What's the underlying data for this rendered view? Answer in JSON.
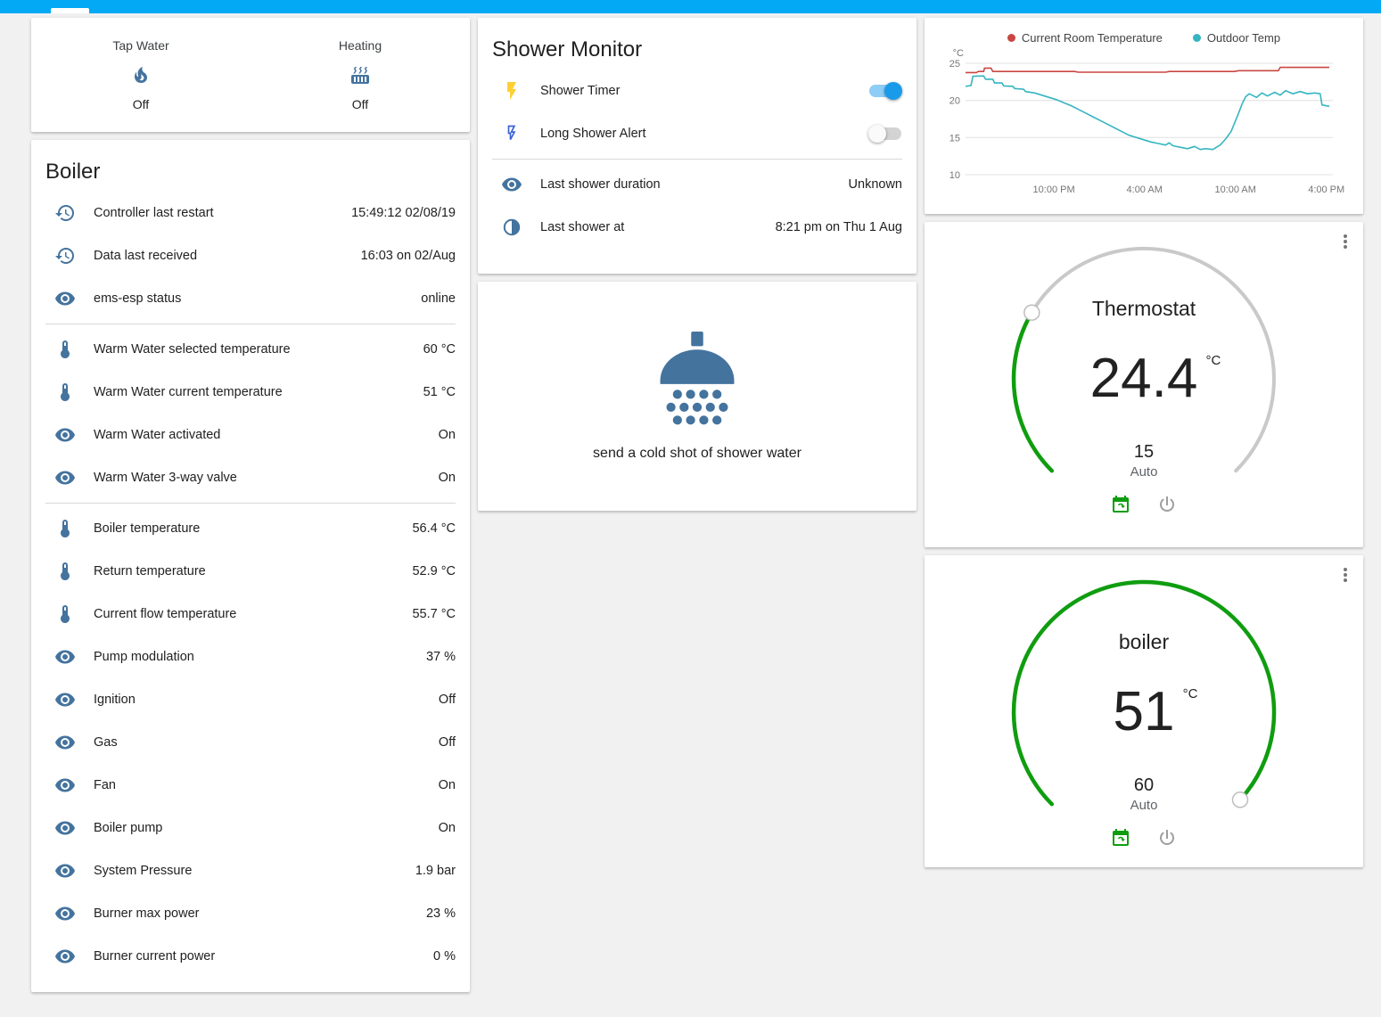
{
  "colors": {
    "accent": "#03a9f4",
    "icon_blue": "#44739e",
    "green": "#0f9d0f",
    "toggle_on": "#1a9bea",
    "toggle_track_on": "#8ecdf5",
    "flash_yellow": "#fdd033",
    "flash_blue": "#3b63d8",
    "series_red": "#c94742",
    "series_teal": "#35b5c1"
  },
  "glance_card": {
    "items": [
      {
        "label": "Tap Water",
        "icon": "fire",
        "state": "Off"
      },
      {
        "label": "Heating",
        "icon": "radiator",
        "state": "Off"
      }
    ]
  },
  "boiler_card": {
    "title": "Boiler",
    "rows": [
      {
        "icon": "history",
        "name": "Controller last restart",
        "value": "15:49:12 02/08/19"
      },
      {
        "icon": "history",
        "name": "Data last received",
        "value": "16:03 on 02/Aug"
      },
      {
        "icon": "eye",
        "name": "ems-esp status",
        "value": "online",
        "divider_after": true
      },
      {
        "icon": "thermometer",
        "name": "Warm Water selected temperature",
        "value": "60 °C"
      },
      {
        "icon": "thermometer",
        "name": "Warm Water current temperature",
        "value": "51 °C"
      },
      {
        "icon": "eye",
        "name": "Warm Water activated",
        "value": "On"
      },
      {
        "icon": "eye",
        "name": "Warm Water 3-way valve",
        "value": "On",
        "divider_after": true
      },
      {
        "icon": "thermometer",
        "name": "Boiler temperature",
        "value": "56.4 °C"
      },
      {
        "icon": "thermometer",
        "name": "Return temperature",
        "value": "52.9 °C"
      },
      {
        "icon": "thermometer",
        "name": "Current flow temperature",
        "value": "55.7 °C"
      },
      {
        "icon": "eye",
        "name": "Pump modulation",
        "value": "37 %"
      },
      {
        "icon": "eye",
        "name": "Ignition",
        "value": "Off"
      },
      {
        "icon": "eye",
        "name": "Gas",
        "value": "Off"
      },
      {
        "icon": "eye",
        "name": "Fan",
        "value": "On"
      },
      {
        "icon": "eye",
        "name": "Boiler pump",
        "value": "On"
      },
      {
        "icon": "eye",
        "name": "System Pressure",
        "value": "1.9 bar"
      },
      {
        "icon": "eye",
        "name": "Burner max power",
        "value": "23 %"
      },
      {
        "icon": "eye",
        "name": "Burner current power",
        "value": "0 %"
      }
    ]
  },
  "shower_card": {
    "title": "Shower Monitor",
    "rows": [
      {
        "name": "Shower Timer",
        "on": true
      },
      {
        "name": "Long Shower Alert",
        "on": false
      },
      {
        "name": "Last shower duration",
        "value": "Unknown"
      },
      {
        "name": "Last shower at",
        "value": "8:21 pm on Thu 1 Aug"
      }
    ]
  },
  "shower_action_card": {
    "label": "send a cold shot of shower water"
  },
  "chart_data": {
    "type": "line",
    "title": "",
    "ylabel": "°C",
    "ylim": [
      10,
      25
    ],
    "yticks": [
      25,
      20,
      15,
      10
    ],
    "xticks": [
      {
        "pos": 0.243,
        "label": "10:00 PM"
      },
      {
        "pos": 0.492,
        "label": "4:00 AM"
      },
      {
        "pos": 0.742,
        "label": "10:00 AM"
      },
      {
        "pos": 0.992,
        "label": "4:00 PM"
      }
    ],
    "grid": true,
    "legend_position": "top",
    "series": [
      {
        "name": "Current Room Temperature",
        "color": "#c94742",
        "points": [
          [
            0,
            23.75
          ],
          [
            0.03,
            23.75
          ],
          [
            0.035,
            23.9
          ],
          [
            0.05,
            23.9
          ],
          [
            0.052,
            24.35
          ],
          [
            0.07,
            24.35
          ],
          [
            0.075,
            23.9
          ],
          [
            0.3,
            23.9
          ],
          [
            0.31,
            23.8
          ],
          [
            0.55,
            23.8
          ],
          [
            0.56,
            23.9
          ],
          [
            0.74,
            23.9
          ],
          [
            0.75,
            24.0
          ],
          [
            0.86,
            24.0
          ],
          [
            0.865,
            24.45
          ],
          [
            1,
            24.45
          ]
        ]
      },
      {
        "name": "Outdoor Temp",
        "color": "#35b5c1",
        "points": [
          [
            0,
            21.9
          ],
          [
            0.015,
            22.0
          ],
          [
            0.02,
            23.25
          ],
          [
            0.05,
            23.3
          ],
          [
            0.055,
            22.85
          ],
          [
            0.075,
            22.85
          ],
          [
            0.08,
            22.35
          ],
          [
            0.1,
            22.35
          ],
          [
            0.105,
            21.95
          ],
          [
            0.13,
            21.9
          ],
          [
            0.135,
            21.6
          ],
          [
            0.16,
            21.5
          ],
          [
            0.165,
            21.2
          ],
          [
            0.19,
            21.0
          ],
          [
            0.21,
            20.7
          ],
          [
            0.23,
            20.4
          ],
          [
            0.25,
            20.1
          ],
          [
            0.27,
            19.7
          ],
          [
            0.29,
            19.3
          ],
          [
            0.31,
            18.8
          ],
          [
            0.33,
            18.3
          ],
          [
            0.35,
            17.8
          ],
          [
            0.37,
            17.3
          ],
          [
            0.39,
            16.8
          ],
          [
            0.41,
            16.3
          ],
          [
            0.43,
            15.8
          ],
          [
            0.45,
            15.3
          ],
          [
            0.47,
            15.0
          ],
          [
            0.49,
            14.7
          ],
          [
            0.51,
            14.4
          ],
          [
            0.53,
            14.2
          ],
          [
            0.55,
            14.0
          ],
          [
            0.56,
            14.3
          ],
          [
            0.57,
            13.9
          ],
          [
            0.59,
            13.7
          ],
          [
            0.61,
            13.5
          ],
          [
            0.63,
            13.8
          ],
          [
            0.645,
            13.4
          ],
          [
            0.66,
            13.5
          ],
          [
            0.68,
            13.4
          ],
          [
            0.7,
            14.0
          ],
          [
            0.715,
            14.8
          ],
          [
            0.73,
            15.8
          ],
          [
            0.74,
            17.0
          ],
          [
            0.75,
            18.2
          ],
          [
            0.76,
            19.5
          ],
          [
            0.77,
            20.5
          ],
          [
            0.78,
            20.9
          ],
          [
            0.8,
            20.4
          ],
          [
            0.815,
            21.0
          ],
          [
            0.83,
            20.6
          ],
          [
            0.85,
            21.1
          ],
          [
            0.865,
            20.7
          ],
          [
            0.88,
            21.3
          ],
          [
            0.9,
            20.9
          ],
          [
            0.92,
            21.2
          ],
          [
            0.94,
            20.9
          ],
          [
            0.96,
            21.0
          ],
          [
            0.975,
            20.9
          ],
          [
            0.98,
            19.4
          ],
          [
            1,
            19.2
          ]
        ]
      }
    ]
  },
  "thermostat_card": {
    "title": "Thermostat",
    "value": "24.4",
    "unit": "°C",
    "target": "15",
    "mode": "Auto",
    "fraction": 0.28
  },
  "boiler_dial_card": {
    "title": "boiler",
    "value": "51",
    "unit": "°C",
    "target": "60",
    "mode": "Auto",
    "fraction": 0.99
  }
}
